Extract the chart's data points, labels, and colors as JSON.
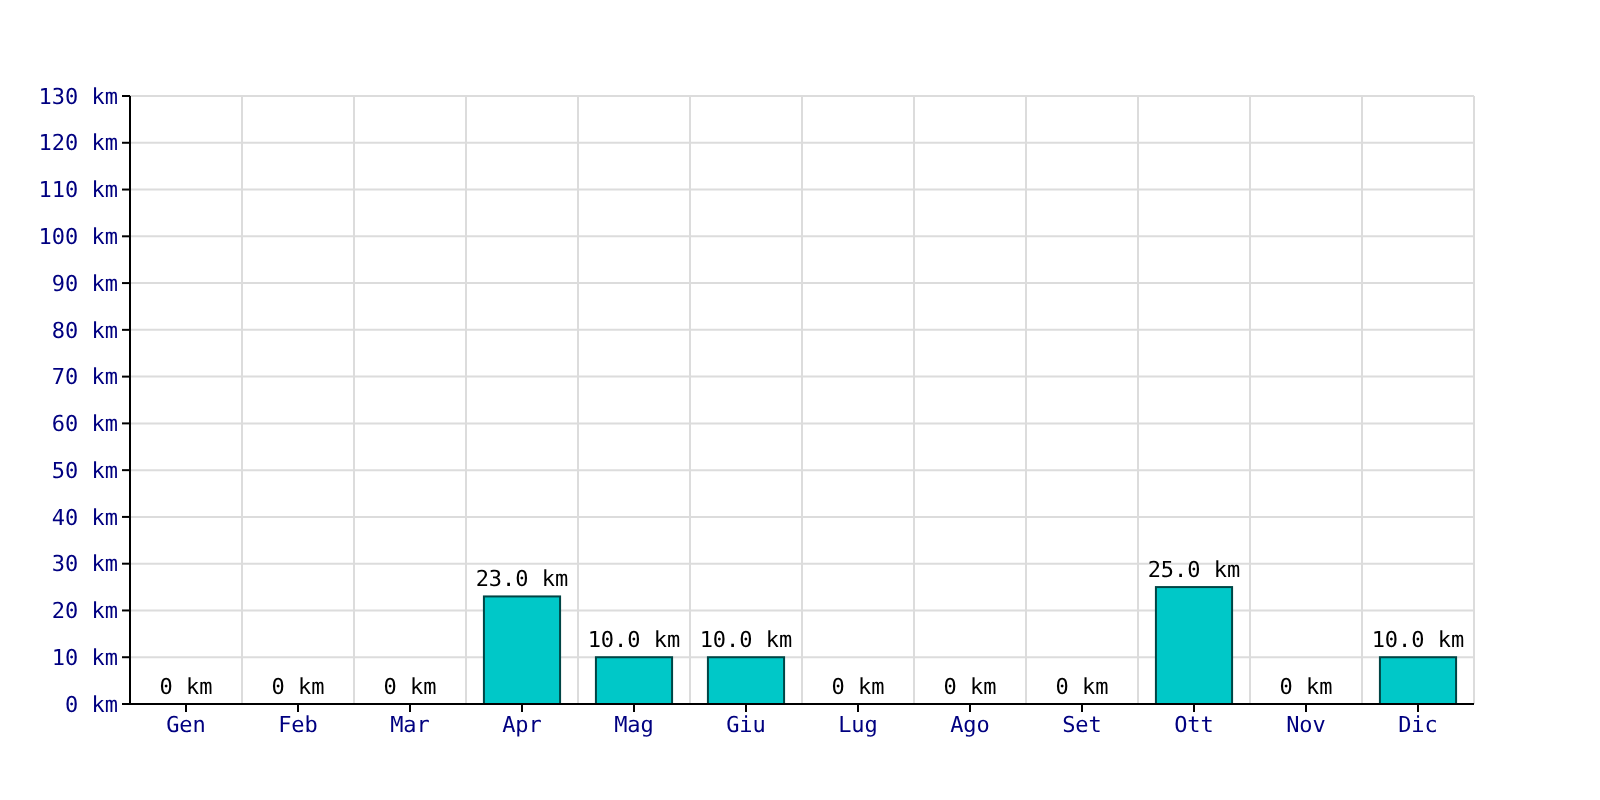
{
  "chart_data": {
    "type": "bar",
    "categories": [
      "Gen",
      "Feb",
      "Mar",
      "Apr",
      "Mag",
      "Giu",
      "Lug",
      "Ago",
      "Set",
      "Ott",
      "Nov",
      "Dic"
    ],
    "values": [
      0,
      0,
      0,
      23,
      10,
      10,
      0,
      0,
      0,
      25,
      0,
      10
    ],
    "value_labels": [
      "0 km",
      "0 km",
      "0 km",
      "23.0 km",
      "10.0 km",
      "10.0 km",
      "0 km",
      "0 km",
      "0 km",
      "25.0 km",
      "0 km",
      "10.0 km"
    ],
    "color": "#00c8c8",
    "ylim": [
      0,
      130
    ],
    "yticks": [
      {
        "value": 0,
        "label": "0 km"
      },
      {
        "value": 10,
        "label": "10 km"
      },
      {
        "value": 20,
        "label": "20 km"
      },
      {
        "value": 30,
        "label": "30 km"
      },
      {
        "value": 40,
        "label": "40 km"
      },
      {
        "value": 50,
        "label": "50 km"
      },
      {
        "value": 60,
        "label": "60 km"
      },
      {
        "value": 70,
        "label": "70 km"
      },
      {
        "value": 80,
        "label": "80 km"
      },
      {
        "value": 90,
        "label": "90 km"
      },
      {
        "value": 100,
        "label": "100 km"
      },
      {
        "value": 110,
        "label": "110 km"
      },
      {
        "value": 120,
        "label": "120 km"
      },
      {
        "value": 130,
        "label": "130 km"
      }
    ],
    "grid": true
  }
}
